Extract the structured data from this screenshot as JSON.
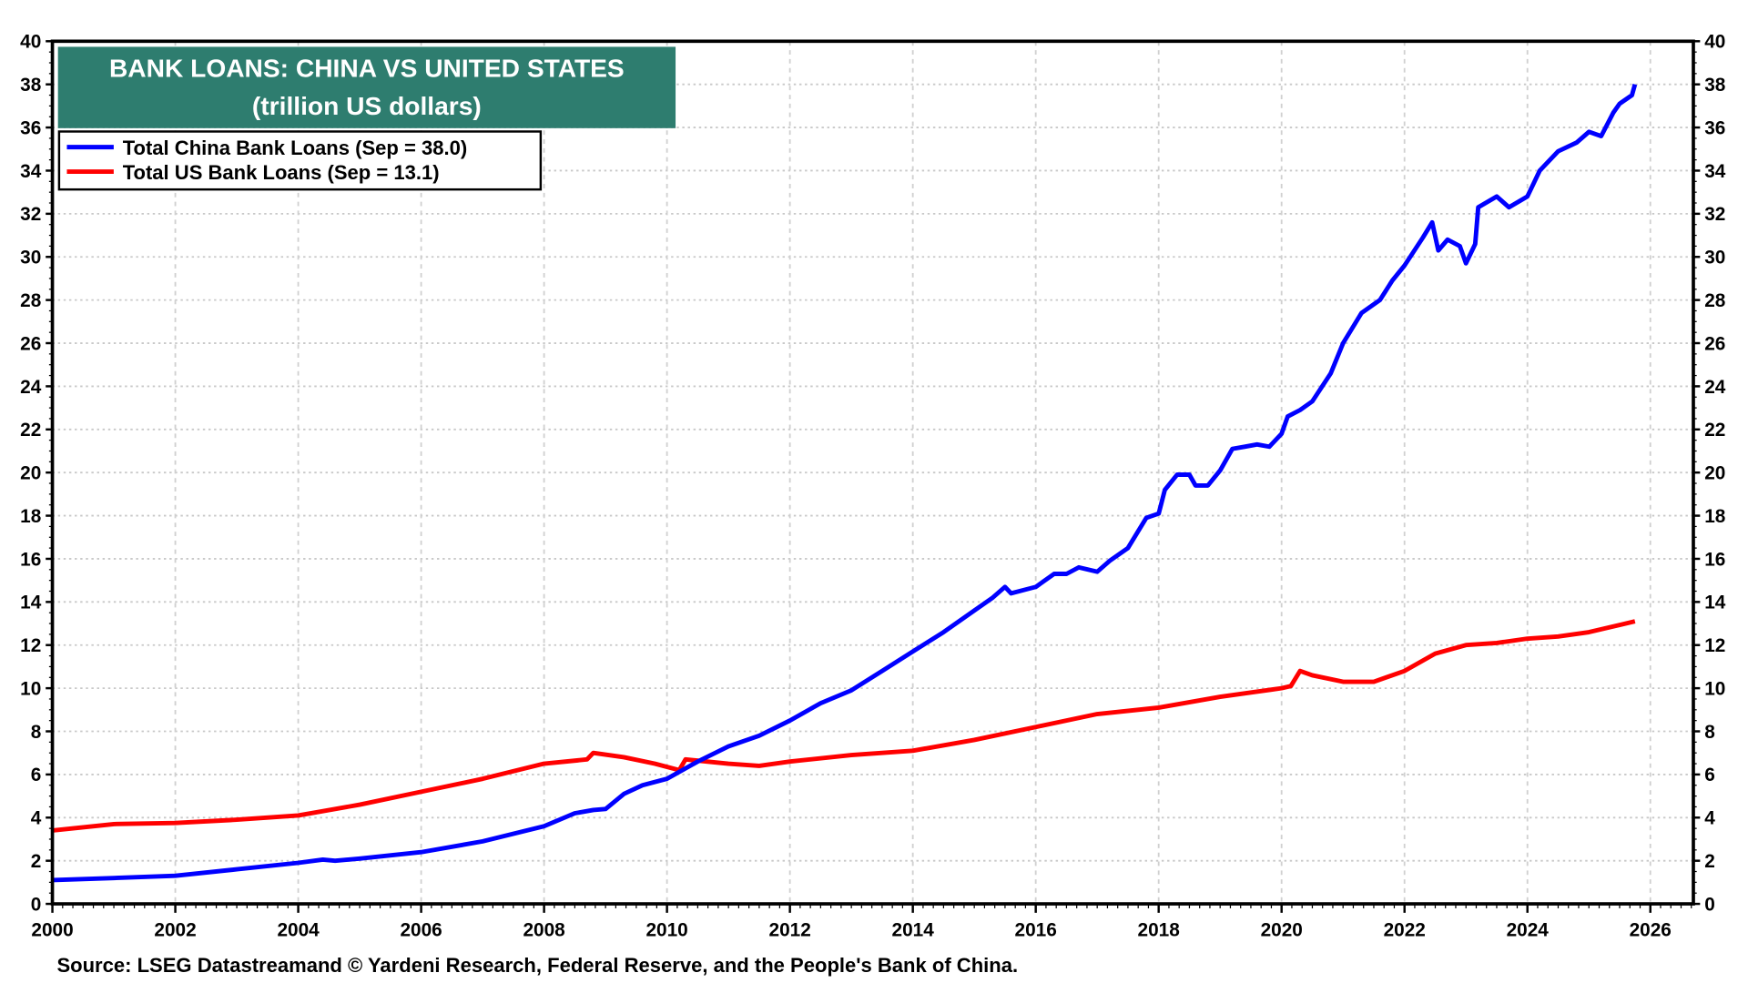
{
  "chart_data": {
    "type": "line",
    "title": "BANK LOANS: CHINA VS UNITED STATES",
    "subtitle": "(trillion US dollars)",
    "xlabel": "",
    "ylabel": "",
    "xlim": [
      2000,
      2026.7
    ],
    "ylim": [
      0,
      40
    ],
    "grid": true,
    "legend_placement": "top-left",
    "x_ticks": [
      "2000",
      "2002",
      "2004",
      "2006",
      "2008",
      "2010",
      "2012",
      "2014",
      "2016",
      "2018",
      "2020",
      "2022",
      "2024",
      "2026"
    ],
    "y_ticks": [
      "0",
      "2",
      "4",
      "6",
      "8",
      "10",
      "12",
      "14",
      "16",
      "18",
      "20",
      "22",
      "24",
      "26",
      "28",
      "30",
      "32",
      "34",
      "36",
      "38",
      "40"
    ],
    "series": [
      {
        "name": "Total China Bank Loans (Sep = 38.0)",
        "color": "#0000ff",
        "x": [
          2000,
          2001,
          2002,
          2003,
          2004,
          2004.4,
          2004.6,
          2005,
          2006,
          2007,
          2008,
          2008.5,
          2008.8,
          2009,
          2009.3,
          2009.6,
          2010,
          2010.5,
          2011,
          2011.5,
          2012,
          2012.5,
          2013,
          2013.5,
          2014,
          2014.5,
          2015,
          2015.3,
          2015.5,
          2015.6,
          2016,
          2016.3,
          2016.5,
          2016.7,
          2017,
          2017.2,
          2017.5,
          2017.8,
          2018,
          2018.1,
          2018.3,
          2018.5,
          2018.6,
          2018.8,
          2019,
          2019.2,
          2019.4,
          2019.6,
          2019.8,
          2020,
          2020.1,
          2020.3,
          2020.5,
          2020.8,
          2021,
          2021.3,
          2021.6,
          2021.8,
          2022,
          2022.3,
          2022.45,
          2022.55,
          2022.7,
          2022.9,
          2023.0,
          2023.15,
          2023.2,
          2023.5,
          2023.7,
          2024,
          2024.2,
          2024.5,
          2024.8,
          2025,
          2025.2,
          2025.4,
          2025.5,
          2025.7,
          2025.75
        ],
        "values": [
          1.1,
          1.2,
          1.3,
          1.6,
          1.9,
          2.05,
          2.0,
          2.1,
          2.4,
          2.9,
          3.6,
          4.2,
          4.35,
          4.4,
          5.1,
          5.5,
          5.8,
          6.6,
          7.3,
          7.8,
          8.5,
          9.3,
          9.9,
          10.8,
          11.7,
          12.6,
          13.6,
          14.2,
          14.7,
          14.4,
          14.7,
          15.3,
          15.3,
          15.6,
          15.4,
          15.9,
          16.5,
          17.9,
          18.1,
          19.2,
          19.9,
          19.9,
          19.4,
          19.4,
          20.1,
          21.1,
          21.2,
          21.3,
          21.2,
          21.8,
          22.6,
          22.9,
          23.3,
          24.6,
          26.0,
          27.4,
          28.0,
          28.9,
          29.6,
          30.9,
          31.6,
          30.3,
          30.8,
          30.5,
          29.7,
          30.6,
          32.3,
          32.8,
          32.3,
          32.8,
          34.0,
          34.9,
          35.3,
          35.8,
          35.6,
          36.7,
          37.1,
          37.5,
          38.0
        ]
      },
      {
        "name": "Total US Bank Loans (Sep = 13.1)",
        "color": "#ff0000",
        "x": [
          2000,
          2001,
          2002,
          2003,
          2004,
          2005,
          2006,
          2007,
          2008,
          2008.7,
          2008.8,
          2009.3,
          2009.8,
          2010.2,
          2010.3,
          2011,
          2011.5,
          2012,
          2013,
          2014,
          2015,
          2016,
          2017,
          2018,
          2019,
          2020,
          2020.15,
          2020.3,
          2020.5,
          2021,
          2021.5,
          2022,
          2022.5,
          2023,
          2023.5,
          2024,
          2024.5,
          2025,
          2025.75
        ],
        "values": [
          3.4,
          3.7,
          3.75,
          3.9,
          4.1,
          4.6,
          5.2,
          5.8,
          6.5,
          6.7,
          7.0,
          6.8,
          6.5,
          6.2,
          6.7,
          6.5,
          6.4,
          6.6,
          6.9,
          7.1,
          7.6,
          8.2,
          8.8,
          9.1,
          9.6,
          10.0,
          10.1,
          10.8,
          10.6,
          10.3,
          10.3,
          10.8,
          11.6,
          12.0,
          12.1,
          12.3,
          12.4,
          12.6,
          13.1
        ]
      }
    ]
  },
  "source": "Source: LSEG Datastreamand © Yardeni Research, Federal Reserve, and the People's Bank of China.",
  "title_box_color": "#2e7d6f"
}
